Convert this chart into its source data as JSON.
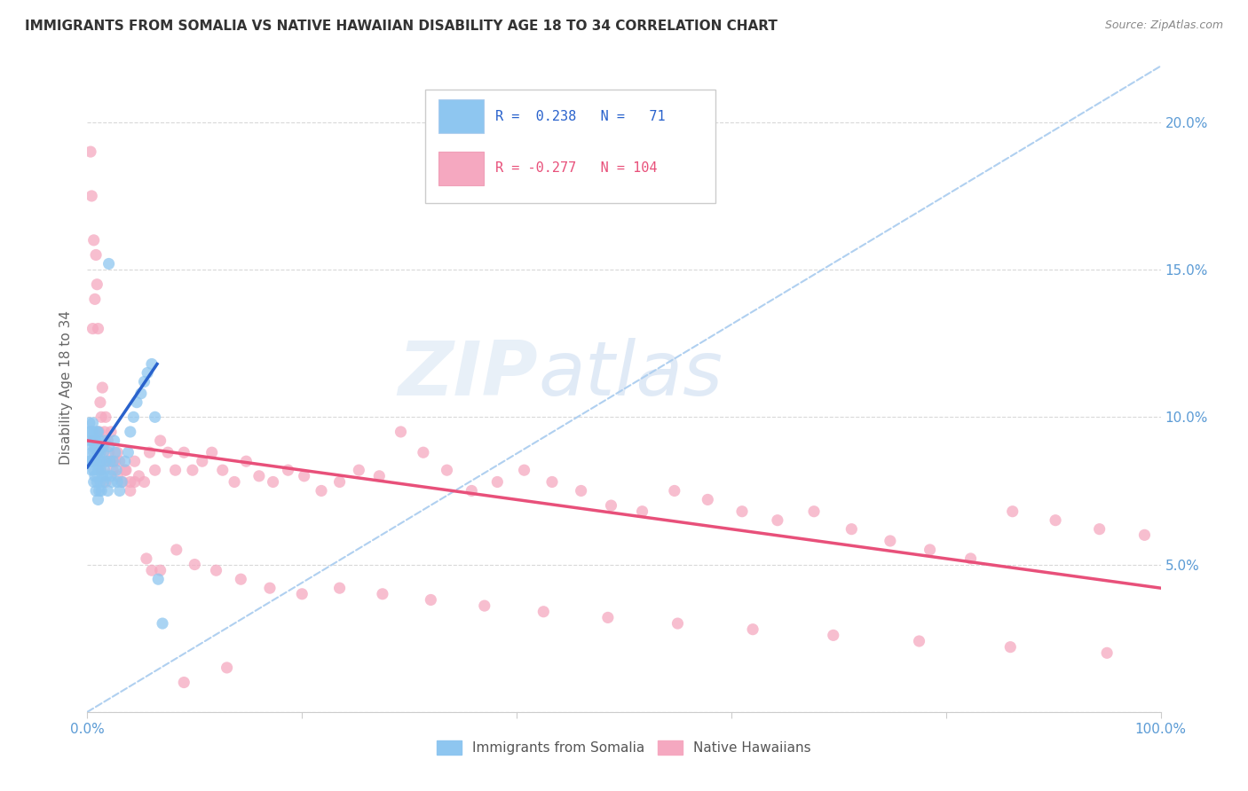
{
  "title": "IMMIGRANTS FROM SOMALIA VS NATIVE HAWAIIAN DISABILITY AGE 18 TO 34 CORRELATION CHART",
  "source": "Source: ZipAtlas.com",
  "ylabel": "Disability Age 18 to 34",
  "xlim": [
    0.0,
    1.0
  ],
  "ylim": [
    0.0,
    0.22
  ],
  "somalia_color": "#8ec6f0",
  "hawaii_color": "#f5a8c0",
  "somalia_line_color": "#2962cc",
  "hawaii_line_color": "#e8507a",
  "dashed_line_color": "#b0d0f0",
  "somalia_line_x0": 0.0,
  "somalia_line_y0": 0.083,
  "somalia_line_x1": 0.065,
  "somalia_line_y1": 0.118,
  "hawaii_line_x0": 0.0,
  "hawaii_line_y0": 0.092,
  "hawaii_line_x1": 1.0,
  "hawaii_line_y1": 0.042,
  "somalia_scatter_x": [
    0.001,
    0.002,
    0.002,
    0.003,
    0.003,
    0.004,
    0.004,
    0.004,
    0.005,
    0.005,
    0.005,
    0.005,
    0.006,
    0.006,
    0.006,
    0.006,
    0.007,
    0.007,
    0.007,
    0.007,
    0.008,
    0.008,
    0.008,
    0.009,
    0.009,
    0.009,
    0.01,
    0.01,
    0.01,
    0.01,
    0.011,
    0.011,
    0.011,
    0.012,
    0.012,
    0.012,
    0.013,
    0.013,
    0.014,
    0.014,
    0.015,
    0.015,
    0.016,
    0.016,
    0.017,
    0.018,
    0.019,
    0.02,
    0.021,
    0.022,
    0.023,
    0.024,
    0.025,
    0.026,
    0.027,
    0.028,
    0.03,
    0.032,
    0.035,
    0.038,
    0.04,
    0.043,
    0.046,
    0.05,
    0.053,
    0.056,
    0.06,
    0.063,
    0.066,
    0.07,
    0.02
  ],
  "somalia_scatter_y": [
    0.095,
    0.098,
    0.085,
    0.092,
    0.085,
    0.088,
    0.095,
    0.082,
    0.09,
    0.085,
    0.092,
    0.098,
    0.078,
    0.088,
    0.095,
    0.082,
    0.08,
    0.09,
    0.085,
    0.092,
    0.075,
    0.085,
    0.092,
    0.078,
    0.088,
    0.095,
    0.072,
    0.082,
    0.088,
    0.095,
    0.075,
    0.085,
    0.092,
    0.078,
    0.088,
    0.082,
    0.075,
    0.085,
    0.08,
    0.09,
    0.078,
    0.088,
    0.082,
    0.092,
    0.085,
    0.08,
    0.075,
    0.09,
    0.085,
    0.08,
    0.078,
    0.085,
    0.092,
    0.088,
    0.082,
    0.078,
    0.075,
    0.078,
    0.085,
    0.088,
    0.095,
    0.1,
    0.105,
    0.108,
    0.112,
    0.115,
    0.118,
    0.1,
    0.045,
    0.03,
    0.152
  ],
  "hawaii_scatter_x": [
    0.003,
    0.004,
    0.005,
    0.006,
    0.007,
    0.008,
    0.009,
    0.01,
    0.011,
    0.012,
    0.013,
    0.014,
    0.015,
    0.016,
    0.017,
    0.018,
    0.019,
    0.02,
    0.022,
    0.024,
    0.026,
    0.028,
    0.03,
    0.033,
    0.036,
    0.04,
    0.044,
    0.048,
    0.053,
    0.058,
    0.063,
    0.068,
    0.075,
    0.082,
    0.09,
    0.098,
    0.107,
    0.116,
    0.126,
    0.137,
    0.148,
    0.16,
    0.173,
    0.187,
    0.202,
    0.218,
    0.235,
    0.253,
    0.272,
    0.292,
    0.313,
    0.335,
    0.358,
    0.382,
    0.407,
    0.433,
    0.46,
    0.488,
    0.517,
    0.547,
    0.578,
    0.61,
    0.643,
    0.677,
    0.712,
    0.748,
    0.785,
    0.823,
    0.862,
    0.902,
    0.943,
    0.985,
    0.005,
    0.007,
    0.01,
    0.013,
    0.017,
    0.022,
    0.028,
    0.035,
    0.044,
    0.055,
    0.068,
    0.083,
    0.1,
    0.12,
    0.143,
    0.17,
    0.2,
    0.235,
    0.275,
    0.32,
    0.37,
    0.425,
    0.485,
    0.55,
    0.62,
    0.695,
    0.775,
    0.86,
    0.95,
    0.04,
    0.06,
    0.09,
    0.13
  ],
  "hawaii_scatter_y": [
    0.19,
    0.175,
    0.13,
    0.16,
    0.14,
    0.155,
    0.145,
    0.13,
    0.095,
    0.105,
    0.1,
    0.11,
    0.09,
    0.095,
    0.1,
    0.085,
    0.092,
    0.088,
    0.095,
    0.082,
    0.085,
    0.088,
    0.085,
    0.078,
    0.082,
    0.078,
    0.085,
    0.08,
    0.078,
    0.088,
    0.082,
    0.092,
    0.088,
    0.082,
    0.088,
    0.082,
    0.085,
    0.088,
    0.082,
    0.078,
    0.085,
    0.08,
    0.078,
    0.082,
    0.08,
    0.075,
    0.078,
    0.082,
    0.08,
    0.095,
    0.088,
    0.082,
    0.075,
    0.078,
    0.082,
    0.078,
    0.075,
    0.07,
    0.068,
    0.075,
    0.072,
    0.068,
    0.065,
    0.068,
    0.062,
    0.058,
    0.055,
    0.052,
    0.068,
    0.065,
    0.062,
    0.06,
    0.092,
    0.085,
    0.088,
    0.082,
    0.078,
    0.085,
    0.08,
    0.082,
    0.078,
    0.052,
    0.048,
    0.055,
    0.05,
    0.048,
    0.045,
    0.042,
    0.04,
    0.042,
    0.04,
    0.038,
    0.036,
    0.034,
    0.032,
    0.03,
    0.028,
    0.026,
    0.024,
    0.022,
    0.02,
    0.075,
    0.048,
    0.01,
    0.015
  ]
}
